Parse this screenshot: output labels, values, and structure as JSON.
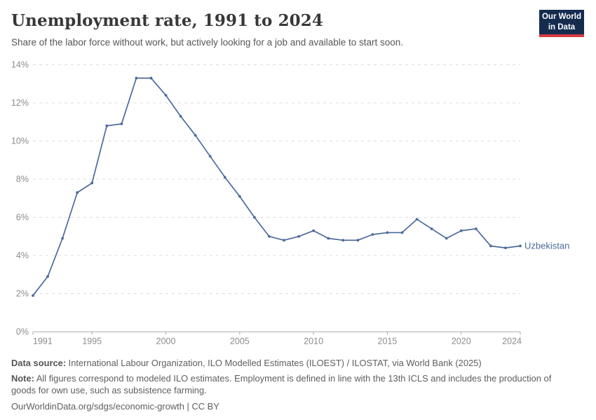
{
  "header": {
    "title": "Unemployment rate, 1991 to 2024",
    "subtitle": "Share of the labor force without work, but actively looking for a job and available to start soon.",
    "logo": {
      "line1": "Our World",
      "line2": "in Data"
    }
  },
  "chart_data": {
    "type": "line",
    "title": "Unemployment rate, 1991 to 2024",
    "x": [
      1991,
      1992,
      1993,
      1994,
      1995,
      1996,
      1997,
      1998,
      1999,
      2000,
      2001,
      2002,
      2003,
      2004,
      2005,
      2006,
      2007,
      2008,
      2009,
      2010,
      2011,
      2012,
      2013,
      2014,
      2015,
      2016,
      2017,
      2018,
      2019,
      2020,
      2021,
      2022,
      2023,
      2024
    ],
    "series": [
      {
        "name": "Uzbekistan",
        "color": "#4c6a9c",
        "values": [
          1.9,
          2.9,
          4.9,
          7.3,
          7.8,
          10.8,
          10.9,
          13.3,
          13.3,
          12.4,
          11.3,
          10.3,
          9.2,
          8.1,
          7.1,
          6.0,
          5.0,
          4.8,
          5.0,
          5.3,
          4.9,
          4.8,
          4.8,
          5.1,
          5.2,
          5.2,
          5.9,
          5.4,
          4.9,
          5.3,
          5.4,
          4.5,
          4.4,
          4.5
        ]
      }
    ],
    "xlabel": "",
    "ylabel": "",
    "ylim": [
      0,
      14
    ],
    "yticks": [
      0,
      2,
      4,
      6,
      8,
      10,
      12,
      14
    ],
    "ytick_suffix": "%",
    "xticks": [
      1991,
      1995,
      2000,
      2005,
      2010,
      2015,
      2020,
      2024
    ],
    "grid": "horizontal-dashed",
    "legend_position": "line-end-label"
  },
  "footer": {
    "datasource_label": "Data source:",
    "datasource_text": " International Labour Organization, ILO Modelled Estimates (ILOEST) / ILOSTAT, via World Bank (2025)",
    "note_label": "Note:",
    "note_text": " All figures correspond to modeled ILO estimates. Employment is defined in line with the 13th ICLS and includes the production of goods for own use, such as subsistence farming.",
    "citation_url": "OurWorldinData.org/sdgs/economic-growth",
    "citation_sep": " | ",
    "citation_license": "CC BY"
  },
  "colors": {
    "line": "#4c6a9c",
    "grid": "#dcdcdc",
    "axis": "#a8a8a8",
    "tick_text": "#8b8b8b",
    "logo_navy": "#162c4f",
    "logo_red": "#d23a42"
  }
}
